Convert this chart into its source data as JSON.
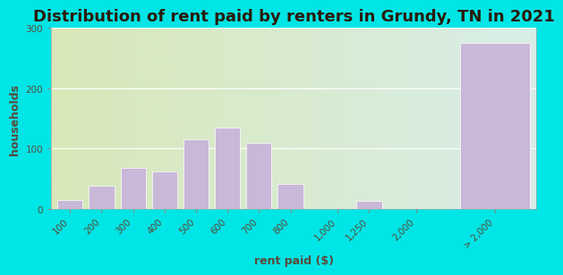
{
  "title": "Distribution of rent paid by renters in Grundy, TN in 2021",
  "xlabel": "rent paid ($)",
  "ylabel": "households",
  "bar_labels": [
    "100",
    "200",
    "300",
    "400",
    "500",
    "600",
    "700",
    "800",
    "1,000",
    "1,250",
    "2,000",
    "> 2,000"
  ],
  "bar_values": [
    15,
    38,
    68,
    62,
    115,
    135,
    110,
    42,
    0,
    13,
    0,
    275
  ],
  "bar_color": "#c9b8d8",
  "background_color": "#00e5e5",
  "plot_bg_color_left": "#d8e8b8",
  "plot_bg_color_right": "#d8eee8",
  "ylim": [
    0,
    300
  ],
  "yticks": [
    0,
    100,
    200,
    300
  ],
  "title_fontsize": 13,
  "axis_fontsize": 9,
  "tick_fontsize": 7.5,
  "x_positions": [
    0,
    1,
    2,
    3,
    4,
    5,
    6,
    7,
    8.5,
    9.5,
    11,
    13.5
  ],
  "bar_widths": [
    0.8,
    0.8,
    0.8,
    0.8,
    0.8,
    0.8,
    0.8,
    0.8,
    0.8,
    0.8,
    0.8,
    2.2
  ]
}
